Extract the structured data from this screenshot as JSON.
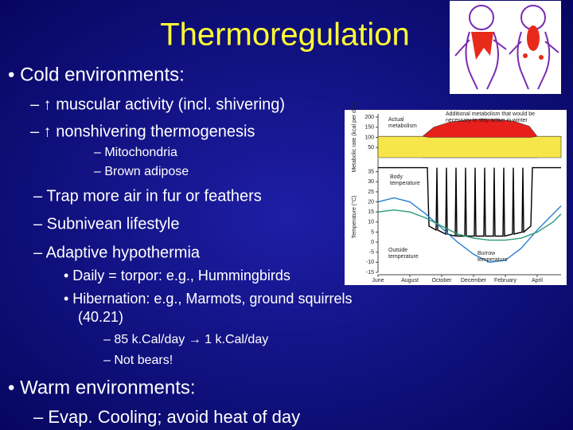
{
  "title": "Thermoregulation",
  "lines": [
    "• Cold environments:",
    "– ↑ muscular activity (incl. shivering)",
    "– ↑ nonshivering thermogenesis",
    "– Mitochondria",
    "– Brown adipose",
    "– Trap more air in fur or feathers",
    "– Subnivean lifestyle",
    "– Adaptive hypothermia",
    "• Daily = torpor: e.g., Hummingbirds",
    "• Hibernation: e.g., Marmots, ground squirrels",
    "(40.21)",
    "– 85 k.Cal/day → 1 k.Cal/day",
    "– Not bears!",
    "• Warm environments:",
    "– Evap. Cooling; avoid heat of day"
  ],
  "figure": {
    "xlim": [
      0,
      11.5
    ],
    "xticks": [
      {
        "value": 0,
        "label": "June"
      },
      {
        "value": 2,
        "label": "August"
      },
      {
        "value": 4,
        "label": "October"
      },
      {
        "value": 6,
        "label": "December"
      },
      {
        "value": 8,
        "label": "February"
      },
      {
        "value": 10,
        "label": "April"
      }
    ],
    "panels": [
      {
        "ylabel": "Metabolic rate (kcal per day)",
        "ylim": [
          0,
          200
        ],
        "yticks": [
          200,
          150,
          100,
          50
        ],
        "series": [
          {
            "kind": "area",
            "color": "#e8201c",
            "label": [
              "Additional metabolism that would be",
              "necessary to stay active in winter"
            ],
            "x": [
              2.8,
              3.5,
              4.5,
              5.5,
              6.5,
              7.5,
              8.5,
              9.5,
              10
            ],
            "values": [
              105,
              150,
              175,
              185,
              190,
              188,
              180,
              155,
              105
            ]
          },
          {
            "kind": "area",
            "color": "#f7e64a",
            "label": [
              "Actual",
              "metabolism"
            ],
            "x": [
              0,
              2.8,
              3.2,
              9.6,
              10,
              11.5
            ],
            "values": [
              105,
              105,
              100,
              100,
              105,
              105
            ]
          }
        ]
      },
      {
        "ylabel": "Temperature (°C)",
        "ylim": [
          -15,
          40
        ],
        "yticks": [
          35,
          30,
          25,
          20,
          15,
          10,
          5,
          0,
          -5,
          -10,
          -15
        ],
        "series": [
          {
            "kind": "line",
            "color": "#000000",
            "label": [
              "Body",
              "temperature"
            ],
            "x": [
              0,
              3.1,
              3.2,
              3.65,
              3.7,
              3.75,
              4.25,
              4.3,
              4.35,
              4.85,
              4.9,
              4.95,
              5.45,
              5.5,
              5.55,
              6.05,
              6.1,
              6.15,
              6.65,
              6.7,
              6.75,
              7.25,
              7.3,
              7.35,
              7.85,
              7.9,
              7.95,
              8.45,
              8.5,
              8.55,
              9.05,
              9.1,
              9.15,
              9.6,
              9.7,
              11.5
            ],
            "values": [
              37,
              37,
              8,
              6,
              37,
              6,
              4,
              37,
              4,
              3,
              37,
              3,
              3,
              37,
              3,
              3,
              37,
              3,
              3,
              37,
              3,
              3,
              37,
              3,
              3,
              37,
              3,
              4,
              37,
              4,
              5,
              37,
              5,
              8,
              37,
              37
            ]
          },
          {
            "kind": "line",
            "color": "#2a7fd0",
            "label": [
              "Outside",
              "temperature"
            ],
            "x": [
              0,
              1,
              2,
              3,
              4,
              5,
              6,
              7,
              8,
              9,
              10,
              11,
              11.5
            ],
            "values": [
              20,
              22,
              20,
              14,
              7,
              0,
              -6,
              -10,
              -9,
              -3,
              6,
              14,
              18
            ]
          },
          {
            "kind": "line",
            "color": "#2a9a7a",
            "label": [
              "Burrow",
              "temperature"
            ],
            "x": [
              0,
              1,
              2,
              3,
              4,
              5,
              6,
              7,
              8,
              9,
              10,
              11,
              11.5
            ],
            "values": [
              15,
              16,
              15,
              12,
              8,
              4,
              2,
              1,
              1,
              2,
              5,
              10,
              14
            ]
          }
        ]
      }
    ]
  }
}
